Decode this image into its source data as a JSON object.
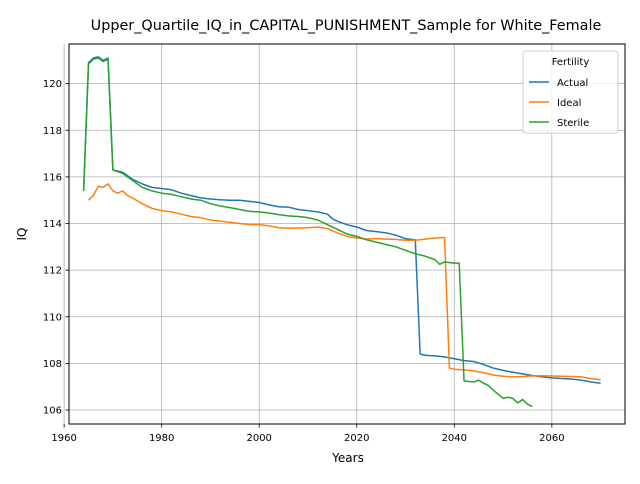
{
  "chart_data": {
    "type": "line",
    "title": "Upper_Quartile_IQ_in_CAPITAL_PUNISHMENT_Sample for White_Female",
    "xlabel": "Years",
    "ylabel": "IQ",
    "xlim": [
      1961,
      2075
    ],
    "ylim": [
      105.4,
      121.7
    ],
    "xticks": [
      1960,
      1980,
      2000,
      2020,
      2040,
      2060
    ],
    "yticks": [
      106,
      108,
      110,
      112,
      114,
      116,
      118,
      120
    ],
    "grid": true,
    "legend": {
      "title": "Fertility",
      "position": "top-right"
    },
    "series": [
      {
        "name": "Actual",
        "color": "#1f77b4",
        "points": [
          [
            1964,
            115.4
          ],
          [
            1965,
            120.9
          ],
          [
            1966,
            121.1
          ],
          [
            1967,
            121.15
          ],
          [
            1968,
            121.0
          ],
          [
            1969,
            121.1
          ],
          [
            1970,
            116.3
          ],
          [
            1972,
            116.2
          ],
          [
            1974,
            115.9
          ],
          [
            1976,
            115.7
          ],
          [
            1978,
            115.55
          ],
          [
            1980,
            115.5
          ],
          [
            1982,
            115.45
          ],
          [
            1984,
            115.3
          ],
          [
            1986,
            115.2
          ],
          [
            1988,
            115.1
          ],
          [
            1990,
            115.05
          ],
          [
            1992,
            115.02
          ],
          [
            1994,
            115.0
          ],
          [
            1996,
            115.0
          ],
          [
            1998,
            114.95
          ],
          [
            2000,
            114.9
          ],
          [
            2002,
            114.8
          ],
          [
            2004,
            114.72
          ],
          [
            2006,
            114.7
          ],
          [
            2008,
            114.6
          ],
          [
            2010,
            114.55
          ],
          [
            2012,
            114.5
          ],
          [
            2014,
            114.4
          ],
          [
            2015,
            114.2
          ],
          [
            2016,
            114.1
          ],
          [
            2018,
            113.95
          ],
          [
            2020,
            113.85
          ],
          [
            2022,
            113.7
          ],
          [
            2024,
            113.65
          ],
          [
            2026,
            113.6
          ],
          [
            2028,
            113.5
          ],
          [
            2030,
            113.35
          ],
          [
            2032,
            113.3
          ],
          [
            2033,
            108.4
          ],
          [
            2034,
            108.35
          ],
          [
            2036,
            108.32
          ],
          [
            2038,
            108.28
          ],
          [
            2040,
            108.2
          ],
          [
            2042,
            108.12
          ],
          [
            2044,
            108.08
          ],
          [
            2046,
            107.95
          ],
          [
            2048,
            107.8
          ],
          [
            2050,
            107.7
          ],
          [
            2052,
            107.62
          ],
          [
            2054,
            107.55
          ],
          [
            2056,
            107.48
          ],
          [
            2058,
            107.42
          ],
          [
            2060,
            107.38
          ],
          [
            2062,
            107.35
          ],
          [
            2064,
            107.33
          ],
          [
            2066,
            107.28
          ],
          [
            2068,
            107.2
          ],
          [
            2070,
            107.15
          ]
        ]
      },
      {
        "name": "Ideal",
        "color": "#ff7f0e",
        "points": [
          [
            1965,
            115.0
          ],
          [
            1966,
            115.2
          ],
          [
            1967,
            115.6
          ],
          [
            1968,
            115.55
          ],
          [
            1969,
            115.7
          ],
          [
            1970,
            115.4
          ],
          [
            1971,
            115.3
          ],
          [
            1972,
            115.4
          ],
          [
            1973,
            115.2
          ],
          [
            1974,
            115.1
          ],
          [
            1976,
            114.85
          ],
          [
            1978,
            114.65
          ],
          [
            1980,
            114.55
          ],
          [
            1982,
            114.5
          ],
          [
            1984,
            114.4
          ],
          [
            1986,
            114.3
          ],
          [
            1988,
            114.25
          ],
          [
            1990,
            114.15
          ],
          [
            1992,
            114.1
          ],
          [
            1994,
            114.05
          ],
          [
            1996,
            114.0
          ],
          [
            1998,
            113.95
          ],
          [
            2000,
            113.95
          ],
          [
            2002,
            113.9
          ],
          [
            2004,
            113.82
          ],
          [
            2006,
            113.8
          ],
          [
            2008,
            113.8
          ],
          [
            2010,
            113.82
          ],
          [
            2012,
            113.85
          ],
          [
            2014,
            113.78
          ],
          [
            2016,
            113.6
          ],
          [
            2018,
            113.45
          ],
          [
            2020,
            113.38
          ],
          [
            2022,
            113.33
          ],
          [
            2024,
            113.35
          ],
          [
            2026,
            113.33
          ],
          [
            2028,
            113.32
          ],
          [
            2030,
            113.28
          ],
          [
            2032,
            113.28
          ],
          [
            2034,
            113.33
          ],
          [
            2036,
            113.38
          ],
          [
            2038,
            113.4
          ],
          [
            2039,
            107.8
          ],
          [
            2040,
            107.75
          ],
          [
            2042,
            107.72
          ],
          [
            2044,
            107.68
          ],
          [
            2046,
            107.6
          ],
          [
            2048,
            107.5
          ],
          [
            2050,
            107.45
          ],
          [
            2052,
            107.42
          ],
          [
            2054,
            107.44
          ],
          [
            2056,
            107.46
          ],
          [
            2058,
            107.47
          ],
          [
            2060,
            107.46
          ],
          [
            2062,
            107.45
          ],
          [
            2064,
            107.44
          ],
          [
            2066,
            107.42
          ],
          [
            2068,
            107.35
          ],
          [
            2070,
            107.3
          ]
        ]
      },
      {
        "name": "Sterile",
        "color": "#2ca02c",
        "points": [
          [
            1964,
            115.4
          ],
          [
            1965,
            120.85
          ],
          [
            1966,
            121.05
          ],
          [
            1967,
            121.1
          ],
          [
            1968,
            120.95
          ],
          [
            1969,
            121.05
          ],
          [
            1970,
            116.3
          ],
          [
            1972,
            116.15
          ],
          [
            1974,
            115.85
          ],
          [
            1976,
            115.55
          ],
          [
            1978,
            115.4
          ],
          [
            1980,
            115.3
          ],
          [
            1982,
            115.25
          ],
          [
            1984,
            115.15
          ],
          [
            1986,
            115.05
          ],
          [
            1988,
            115.0
          ],
          [
            1990,
            114.85
          ],
          [
            1992,
            114.75
          ],
          [
            1994,
            114.68
          ],
          [
            1996,
            114.6
          ],
          [
            1998,
            114.52
          ],
          [
            2000,
            114.5
          ],
          [
            2002,
            114.45
          ],
          [
            2004,
            114.38
          ],
          [
            2006,
            114.33
          ],
          [
            2008,
            114.3
          ],
          [
            2010,
            114.25
          ],
          [
            2012,
            114.15
          ],
          [
            2014,
            113.95
          ],
          [
            2016,
            113.75
          ],
          [
            2018,
            113.55
          ],
          [
            2020,
            113.45
          ],
          [
            2022,
            113.3
          ],
          [
            2024,
            113.2
          ],
          [
            2026,
            113.1
          ],
          [
            2028,
            113.0
          ],
          [
            2030,
            112.85
          ],
          [
            2032,
            112.7
          ],
          [
            2034,
            112.6
          ],
          [
            2036,
            112.45
          ],
          [
            2037,
            112.25
          ],
          [
            2038,
            112.35
          ],
          [
            2040,
            112.3
          ],
          [
            2041,
            112.3
          ],
          [
            2042,
            107.25
          ],
          [
            2044,
            107.2
          ],
          [
            2045,
            107.28
          ],
          [
            2046,
            107.15
          ],
          [
            2047,
            107.05
          ],
          [
            2048,
            106.85
          ],
          [
            2050,
            106.5
          ],
          [
            2051,
            106.55
          ],
          [
            2052,
            106.5
          ],
          [
            2053,
            106.3
          ],
          [
            2054,
            106.45
          ],
          [
            2055,
            106.25
          ],
          [
            2056,
            106.15
          ]
        ]
      }
    ]
  }
}
